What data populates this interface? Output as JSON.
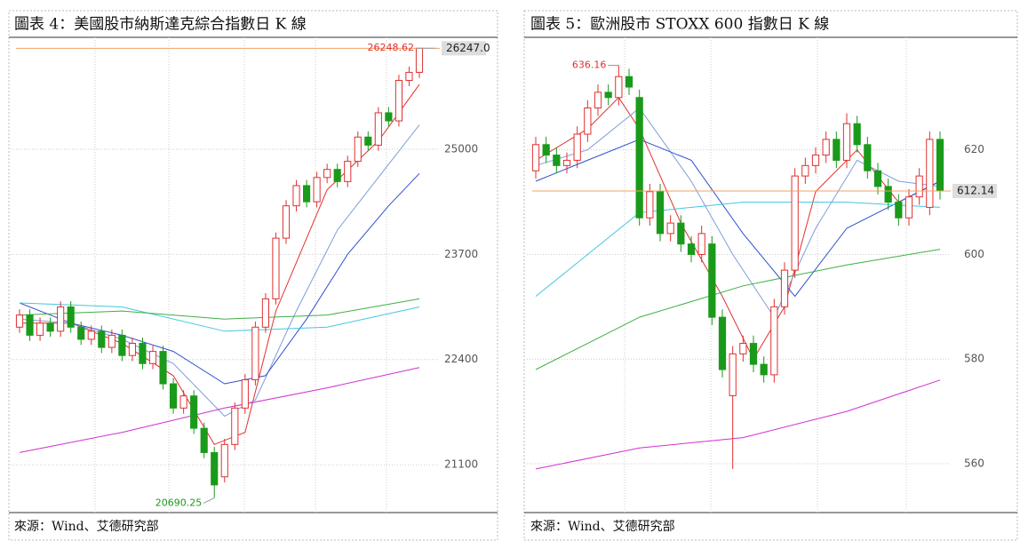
{
  "chart_data": [
    {
      "type": "candlestick",
      "title": "圖表 4：美國股市納斯達克綜合指數日 K 線",
      "source": "來源：Wind、艾德研究部",
      "open": [
        22800,
        22950,
        22700,
        22850,
        22750,
        23050,
        22800,
        22650,
        22750,
        22550,
        22700,
        22450,
        22600,
        22350,
        22500,
        22100,
        21800,
        21950,
        21550,
        21250,
        20950,
        21350,
        21800,
        22150,
        22800,
        23150,
        23900,
        24300,
        24550,
        24350,
        24650,
        24750,
        24600,
        24850,
        25150,
        25050,
        25450,
        25350,
        25850,
        25950
      ],
      "high": [
        23020,
        23020,
        22920,
        22920,
        23120,
        23120,
        22870,
        22820,
        22820,
        22770,
        22770,
        22670,
        22670,
        22570,
        22570,
        22170,
        22020,
        22020,
        21620,
        21320,
        21420,
        21870,
        22220,
        22870,
        23220,
        23970,
        24370,
        24620,
        24620,
        24720,
        24820,
        24820,
        24920,
        25220,
        25220,
        25520,
        25520,
        25920,
        26020,
        26248.62
      ],
      "low": [
        22730,
        22630,
        22630,
        22680,
        22680,
        22730,
        22580,
        22580,
        22480,
        22480,
        22380,
        22380,
        22280,
        22280,
        22030,
        21730,
        21730,
        21480,
        21180,
        20690.25,
        20880,
        21280,
        21730,
        22080,
        22730,
        23080,
        23830,
        24230,
        24280,
        24280,
        24580,
        24530,
        24530,
        24780,
        24980,
        24980,
        25280,
        25280,
        25780,
        25880
      ],
      "close": [
        22950,
        22700,
        22850,
        22750,
        23050,
        22800,
        22650,
        22750,
        22550,
        22700,
        22450,
        22600,
        22350,
        22500,
        22100,
        21800,
        21950,
        21550,
        21250,
        20850,
        21350,
        21800,
        22150,
        22800,
        23150,
        23900,
        24300,
        24550,
        24350,
        24650,
        24750,
        24600,
        24850,
        25150,
        25050,
        25450,
        25350,
        25850,
        25950,
        26247
      ],
      "up_color": "#e03030",
      "down_color": "#1a9a1a",
      "lines": [
        {
          "color": "#e03030",
          "x": [
            0,
            5,
            10,
            15,
            19,
            22,
            25,
            30,
            35,
            39
          ],
          "values": [
            22850,
            22850,
            22600,
            22200,
            21350,
            21500,
            23000,
            24500,
            25100,
            25800
          ]
        },
        {
          "color": "#7f9ed8",
          "x": [
            0,
            5,
            10,
            15,
            20,
            23,
            27,
            31,
            35,
            39
          ],
          "values": [
            22900,
            22850,
            22650,
            22350,
            21700,
            21900,
            23000,
            24000,
            24650,
            25300
          ]
        },
        {
          "color": "#3050d0",
          "x": [
            0,
            5,
            10,
            15,
            20,
            24,
            28,
            32,
            36,
            39
          ],
          "values": [
            23100,
            22850,
            22700,
            22500,
            22100,
            22200,
            22900,
            23700,
            24300,
            24700
          ]
        },
        {
          "color": "#40c8e0",
          "x": [
            0,
            10,
            20,
            30,
            39
          ],
          "values": [
            23100,
            23050,
            22750,
            22800,
            23050
          ]
        },
        {
          "color": "#3cb043",
          "x": [
            0,
            10,
            20,
            30,
            39
          ],
          "values": [
            22950,
            23000,
            22900,
            22950,
            23150
          ]
        },
        {
          "color": "#d030d0",
          "x": [
            0,
            10,
            20,
            30,
            39
          ],
          "values": [
            21250,
            21500,
            21800,
            22050,
            22300
          ]
        }
      ],
      "last_price": {
        "value": 26247,
        "label": "26247.0"
      },
      "last_price_color": "#f0a060",
      "ylim": [
        20530,
        26350
      ],
      "yticks": [
        21100,
        22400,
        23700,
        25000
      ],
      "grid": true
    },
    {
      "type": "candlestick",
      "title": "圖表 5：歐洲股市 STOXX 600 指數日 K 線",
      "source": "來源：Wind、艾德研究部",
      "open": [
        616,
        621,
        619,
        617,
        618,
        623,
        628,
        631,
        630,
        634,
        630,
        607,
        612,
        604,
        606,
        602,
        600,
        602,
        588,
        573,
        581,
        583,
        579,
        577,
        590,
        597,
        615,
        617,
        619,
        622,
        618,
        625,
        621,
        616,
        613,
        610,
        607,
        611,
        609,
        622
      ],
      "high": [
        622.5,
        622.5,
        620.5,
        619.5,
        624.5,
        629.5,
        632.5,
        632.5,
        636.16,
        635.5,
        631.5,
        613.5,
        613.5,
        607.5,
        607.5,
        603.5,
        605.5,
        603.5,
        589.5,
        582.5,
        584.5,
        584.5,
        580.5,
        591.5,
        598.5,
        616.5,
        618.5,
        620.5,
        623.5,
        623.5,
        627,
        626.5,
        622.5,
        617.5,
        614.5,
        611.5,
        612.5,
        616.5,
        623.5,
        623.5
      ],
      "low": [
        614.5,
        617.5,
        615.5,
        615.5,
        616.5,
        621.5,
        626.5,
        628.5,
        628.5,
        630.5,
        605.5,
        605.5,
        602.5,
        602.5,
        600.5,
        598.5,
        598.5,
        586.5,
        576.5,
        559,
        579.5,
        577.5,
        575.5,
        575.5,
        588.5,
        595.5,
        613.5,
        615.5,
        617.5,
        616.5,
        616.5,
        619.5,
        614.5,
        611.5,
        608.5,
        605.5,
        605.5,
        609.5,
        607.5,
        610.5
      ],
      "close": [
        621,
        619,
        617,
        618,
        623,
        628,
        631,
        630,
        634,
        632,
        607,
        612,
        604,
        606,
        602,
        600,
        604,
        588,
        578,
        581,
        583,
        579,
        577,
        590,
        597,
        615,
        617,
        619,
        622,
        618,
        625,
        621,
        616,
        613,
        610,
        607,
        611,
        615,
        622,
        612.14
      ],
      "up_color": "#e03030",
      "down_color": "#1a9a1a",
      "lines": [
        {
          "color": "#e03030",
          "x": [
            0,
            5,
            8,
            10,
            14,
            18,
            21,
            24,
            27,
            31,
            35,
            39
          ],
          "values": [
            618,
            624,
            630,
            624,
            606,
            592,
            580,
            590,
            612,
            620,
            610,
            614
          ]
        },
        {
          "color": "#7f9ed8",
          "x": [
            0,
            5,
            10,
            15,
            19,
            23,
            27,
            31,
            35,
            39
          ],
          "values": [
            617,
            620,
            628,
            614,
            600,
            588,
            605,
            618,
            614,
            613
          ]
        },
        {
          "color": "#3050d0",
          "x": [
            0,
            5,
            10,
            15,
            20,
            25,
            30,
            35,
            39
          ],
          "values": [
            614,
            618,
            622,
            618,
            604,
            592,
            605,
            610,
            614
          ]
        },
        {
          "color": "#40c8e0",
          "x": [
            0,
            10,
            20,
            30,
            39
          ],
          "values": [
            592,
            608,
            610,
            610,
            609
          ]
        },
        {
          "color": "#3cb043",
          "x": [
            0,
            10,
            20,
            30,
            39
          ],
          "values": [
            578,
            588,
            594,
            598,
            601
          ]
        },
        {
          "color": "#d030d0",
          "x": [
            0,
            10,
            20,
            30,
            39
          ],
          "values": [
            559,
            563,
            565,
            570,
            576
          ]
        }
      ],
      "last_price": 612.14,
      "last_price_color": "#f0a060",
      "ylim": [
        551,
        641
      ],
      "yticks": [
        560,
        580,
        600,
        620
      ],
      "grid": true
    }
  ]
}
